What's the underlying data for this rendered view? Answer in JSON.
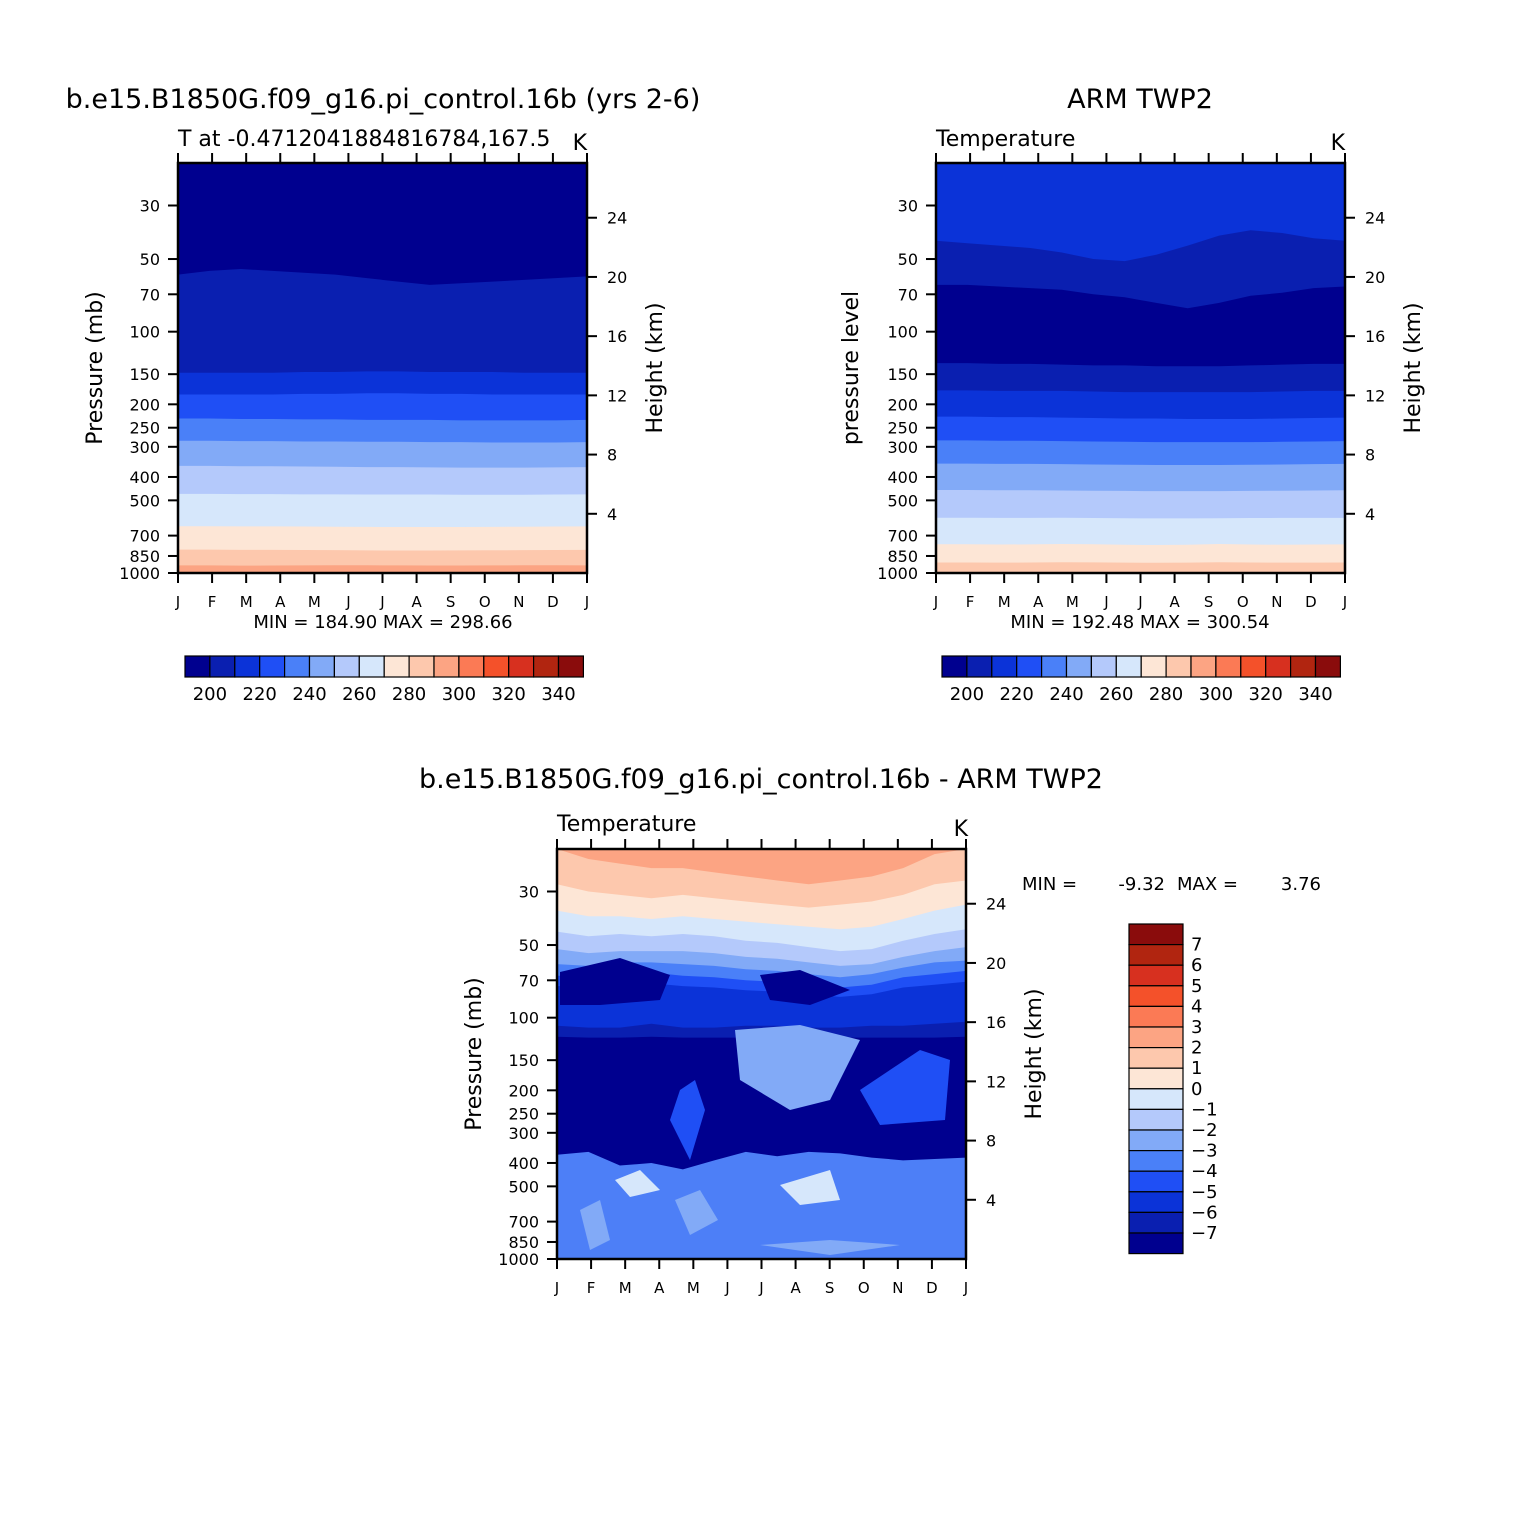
{
  "chart_data": [
    {
      "type": "heatmap",
      "title": "b.e15.B1850G.f09_g16.pi_control.16b (yrs 2-6)",
      "subtitle_left": "T at -0.4712041884816784,167.5",
      "subtitle_right": "K",
      "ylabel": "Pressure (mb)",
      "y2label": "Height (km)",
      "xticks": [
        "J",
        "F",
        "M",
        "A",
        "M",
        "J",
        "J",
        "A",
        "S",
        "O",
        "N",
        "D",
        "J"
      ],
      "yticks": [
        "30",
        "50",
        "70",
        "100",
        "150",
        "200",
        "250",
        "300",
        "400",
        "500",
        "700",
        "850",
        "1000"
      ],
      "y2ticks": [
        "24",
        "20",
        "16",
        "12",
        "8",
        "4"
      ],
      "stats": "MIN = 184.90 MAX = 298.66",
      "colorbar": {
        "labels": [
          "200",
          "220",
          "240",
          "260",
          "280",
          "300",
          "320",
          "340"
        ]
      },
      "description": "monthly-mean temperature contours, K",
      "boundaries_hpa": [
        [
          58,
          56,
          55,
          56,
          57,
          58,
          60,
          62,
          64,
          63,
          62,
          61,
          60,
          59
        ],
        [
          148,
          148,
          148,
          148,
          147,
          147,
          146,
          146,
          147,
          147,
          147,
          148,
          148,
          148
        ],
        [
          182,
          182,
          182,
          182,
          181,
          181,
          180,
          180,
          181,
          181,
          182,
          182,
          182,
          182
        ],
        [
          229,
          229,
          230,
          230,
          231,
          231,
          232,
          232,
          232,
          233,
          233,
          233,
          233,
          232
        ],
        [
          283,
          283,
          284,
          284,
          285,
          285,
          286,
          286,
          287,
          287,
          288,
          288,
          288,
          287
        ],
        [
          360,
          360,
          361,
          361,
          362,
          363,
          364,
          364,
          365,
          366,
          366,
          366,
          365,
          364
        ],
        [
          470,
          470,
          471,
          471,
          472,
          472,
          473,
          473,
          473,
          474,
          474,
          474,
          473,
          472
        ],
        [
          640,
          640,
          641,
          641,
          642,
          643,
          644,
          645,
          645,
          645,
          644,
          643,
          642,
          641
        ],
        [
          800,
          800,
          802,
          802,
          803,
          804,
          806,
          807,
          807,
          806,
          805,
          804,
          803,
          802
        ],
        [
          930,
          930,
          932,
          931,
          930,
          929,
          929,
          930,
          931,
          931,
          930,
          929,
          929,
          930
        ]
      ]
    },
    {
      "type": "heatmap",
      "title": "ARM TWP2",
      "subtitle_left": "Temperature",
      "subtitle_right": "K",
      "ylabel": "pressure level",
      "y2label": "Height (km)",
      "xticks": [
        "J",
        "F",
        "M",
        "A",
        "M",
        "J",
        "J",
        "A",
        "S",
        "O",
        "N",
        "D",
        "J"
      ],
      "yticks": [
        "30",
        "50",
        "70",
        "100",
        "150",
        "200",
        "250",
        "300",
        "400",
        "500",
        "700",
        "850",
        "1000"
      ],
      "y2ticks": [
        "24",
        "20",
        "16",
        "12",
        "8",
        "4"
      ],
      "stats": "MIN = 192.48 MAX = 300.54",
      "colorbar": {
        "labels": [
          "200",
          "220",
          "240",
          "260",
          "280",
          "300",
          "320",
          "340"
        ]
      },
      "description": "monthly-mean temperature contours, K",
      "boundaries_hpa": [
        [
          42,
          43,
          44,
          45,
          47,
          50,
          51,
          48,
          44,
          40,
          38,
          39,
          41,
          42
        ],
        [
          64,
          64,
          65,
          66,
          67,
          70,
          72,
          76,
          80,
          76,
          71,
          69,
          66,
          65
        ],
        [
          135,
          135,
          136,
          136,
          137,
          138,
          138,
          139,
          139,
          139,
          138,
          137,
          136,
          136
        ],
        [
          175,
          175,
          176,
          176,
          176,
          177,
          178,
          178,
          178,
          178,
          178,
          177,
          176,
          176
        ],
        [
          225,
          225,
          226,
          226,
          227,
          228,
          229,
          229,
          230,
          230,
          230,
          229,
          228,
          227
        ],
        [
          282,
          282,
          283,
          283,
          284,
          285,
          286,
          287,
          287,
          287,
          287,
          286,
          285,
          284
        ],
        [
          352,
          352,
          353,
          353,
          354,
          355,
          356,
          357,
          357,
          357,
          356,
          355,
          354,
          353
        ],
        [
          453,
          453,
          454,
          454,
          455,
          456,
          457,
          458,
          458,
          458,
          457,
          456,
          455,
          454
        ],
        [
          590,
          590,
          591,
          591,
          590,
          592,
          593,
          594,
          594,
          593,
          592,
          591,
          591,
          591
        ],
        [
          760,
          760,
          762,
          761,
          758,
          760,
          764,
          766,
          764,
          758,
          762,
          764,
          762,
          761
        ],
        [
          905,
          905,
          906,
          905,
          903,
          904,
          906,
          907,
          906,
          903,
          905,
          906,
          906,
          905
        ]
      ]
    },
    {
      "type": "heatmap",
      "title": "b.e15.B1850G.f09_g16.pi_control.16b - ARM TWP2",
      "subtitle_left": "Temperature",
      "subtitle_right": "K",
      "ylabel": "Pressure (mb)",
      "y2label": "Height (km)",
      "xticks": [
        "J",
        "F",
        "M",
        "A",
        "M",
        "J",
        "J",
        "A",
        "S",
        "O",
        "N",
        "D",
        "J"
      ],
      "yticks": [
        "30",
        "50",
        "70",
        "100",
        "150",
        "200",
        "250",
        "300",
        "400",
        "500",
        "700",
        "850",
        "1000"
      ],
      "y2ticks": [
        "24",
        "20",
        "16",
        "12",
        "8",
        "4"
      ],
      "stats_min_label": "MIN =",
      "stats_min": "-9.32",
      "stats_max_label": "MAX =",
      "stats_max": "3.76",
      "colorbar": {
        "labels": [
          "7",
          "6",
          "5",
          "4",
          "3",
          "2",
          "1",
          "0",
          "−1",
          "−2",
          "−3",
          "−4",
          "−5",
          "−6",
          "−7"
        ]
      },
      "description": "difference (model minus observations) temperature contours, K",
      "boundaries_hpa": [
        [
          20,
          22,
          23,
          24,
          24,
          25,
          26,
          27,
          28,
          27,
          26,
          24,
          21,
          20
        ],
        [
          28,
          30,
          31,
          32,
          31,
          32,
          33,
          34,
          35,
          34,
          33,
          31,
          28,
          27
        ],
        [
          36,
          38,
          38,
          39,
          38,
          39,
          40,
          41,
          42,
          43,
          42,
          39,
          36,
          34
        ],
        [
          44,
          46,
          45,
          46,
          45,
          46,
          48,
          49,
          51,
          53,
          52,
          48,
          45,
          43
        ],
        [
          52,
          54,
          53,
          53,
          53,
          54,
          56,
          57,
          59,
          61,
          60,
          56,
          53,
          51
        ],
        [
          60,
          61,
          59,
          59,
          60,
          61,
          63,
          64,
          66,
          68,
          66,
          62,
          59,
          58
        ],
        [
          67,
          67,
          65,
          65,
          67,
          68,
          70,
          71,
          73,
          75,
          73,
          68,
          66,
          64
        ],
        [
          74,
          74,
          72,
          72,
          74,
          75,
          77,
          78,
          80,
          82,
          80,
          75,
          73,
          71
        ],
        [
          108,
          110,
          110,
          106,
          110,
          110,
          108,
          108,
          110,
          110,
          108,
          108,
          106,
          104
        ],
        [
          120,
          121,
          121,
          120,
          121,
          121,
          121,
          121,
          121,
          121,
          121,
          121,
          121,
          120
        ],
        [
          370,
          360,
          410,
          400,
          425,
          390,
          360,
          375,
          360,
          365,
          380,
          390,
          385,
          380
        ]
      ]
    }
  ]
}
